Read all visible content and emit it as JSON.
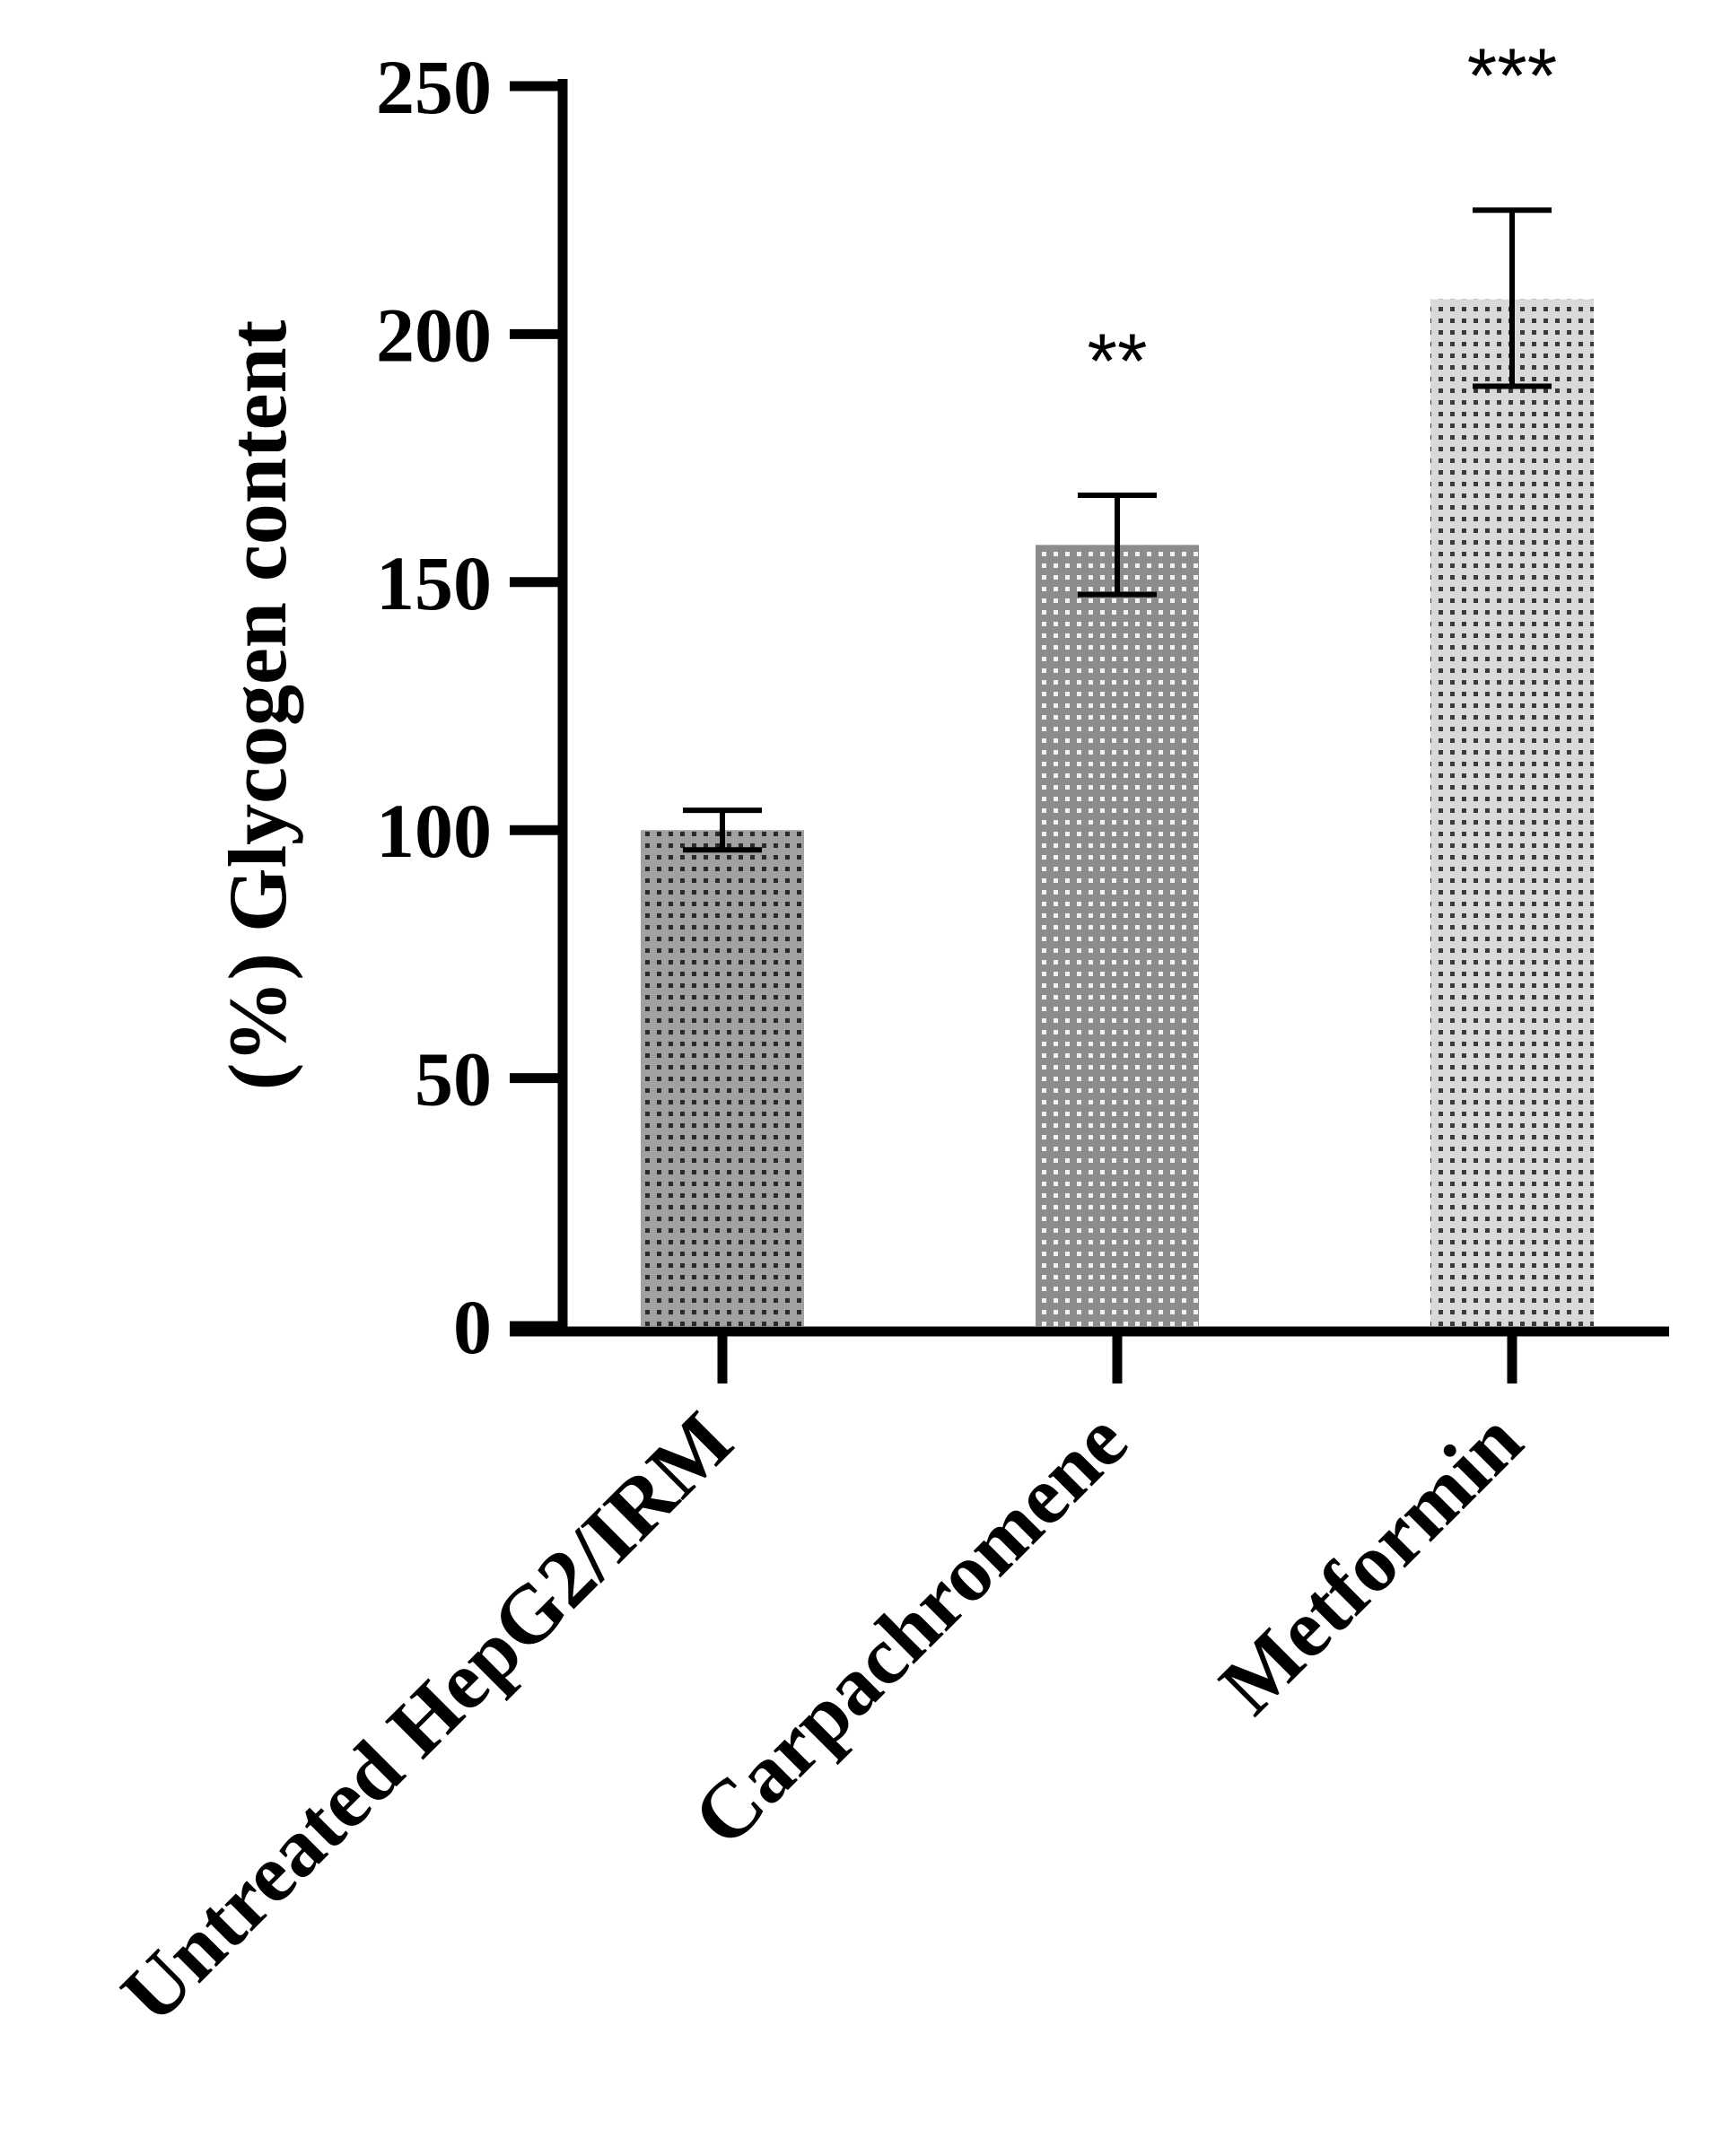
{
  "chart_data": {
    "type": "bar",
    "title": "",
    "xlabel": "",
    "ylabel": "(%) Glycogen content",
    "ylim": [
      0,
      250
    ],
    "yticks": [
      0,
      50,
      100,
      150,
      200,
      250
    ],
    "ytick_labels": [
      "0",
      "50",
      "100",
      "150",
      "200",
      "250"
    ],
    "categories": [
      "Untreated HepG2/IRM",
      "Carpachromene",
      "Metformin"
    ],
    "values": [
      100,
      157.5,
      207
    ],
    "error_low": [
      96,
      147.5,
      189.5
    ],
    "error_high": [
      104,
      167.5,
      225
    ],
    "significance": [
      "",
      "**",
      "***"
    ],
    "bar_colors": [
      "#a1a1a1",
      "#8c8c8c",
      "#d9d9d9"
    ],
    "dot_colors": [
      "#2a2a2a",
      "#f2f2f2",
      "#3a3a3a"
    ],
    "grid": false,
    "legend": "none"
  }
}
